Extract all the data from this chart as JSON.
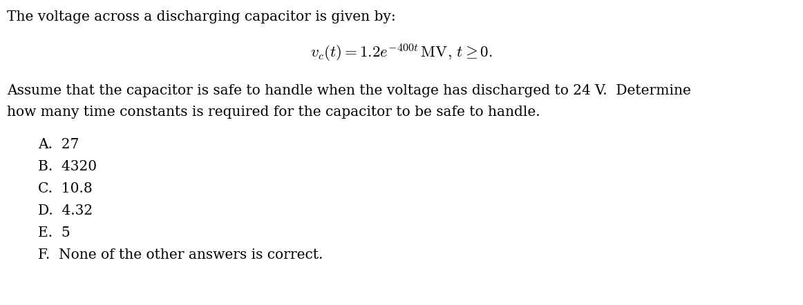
{
  "background_color": "#ffffff",
  "line1": "The voltage across a discharging capacitor is given by:",
  "equation": "$v_c(t) = 1.2e^{-400t}\\,\\mathrm{MV},\\, t \\geq 0.$",
  "line3": "Assume that the capacitor is safe to handle when the voltage has discharged to 24 V.  Determine",
  "line4": "how many time constants is required for the capacitor to be safe to handle.",
  "choices": [
    "A.  27",
    "B.  4320",
    "C.  10.8",
    "D.  4.32",
    "E.  5",
    "F.  None of the other answers is correct."
  ],
  "text_color": "#000000",
  "font_size_body": 14.5,
  "font_size_eq": 16.5,
  "font_size_choices": 14.5,
  "fig_width": 11.62,
  "fig_height": 4.42,
  "dpi": 100
}
